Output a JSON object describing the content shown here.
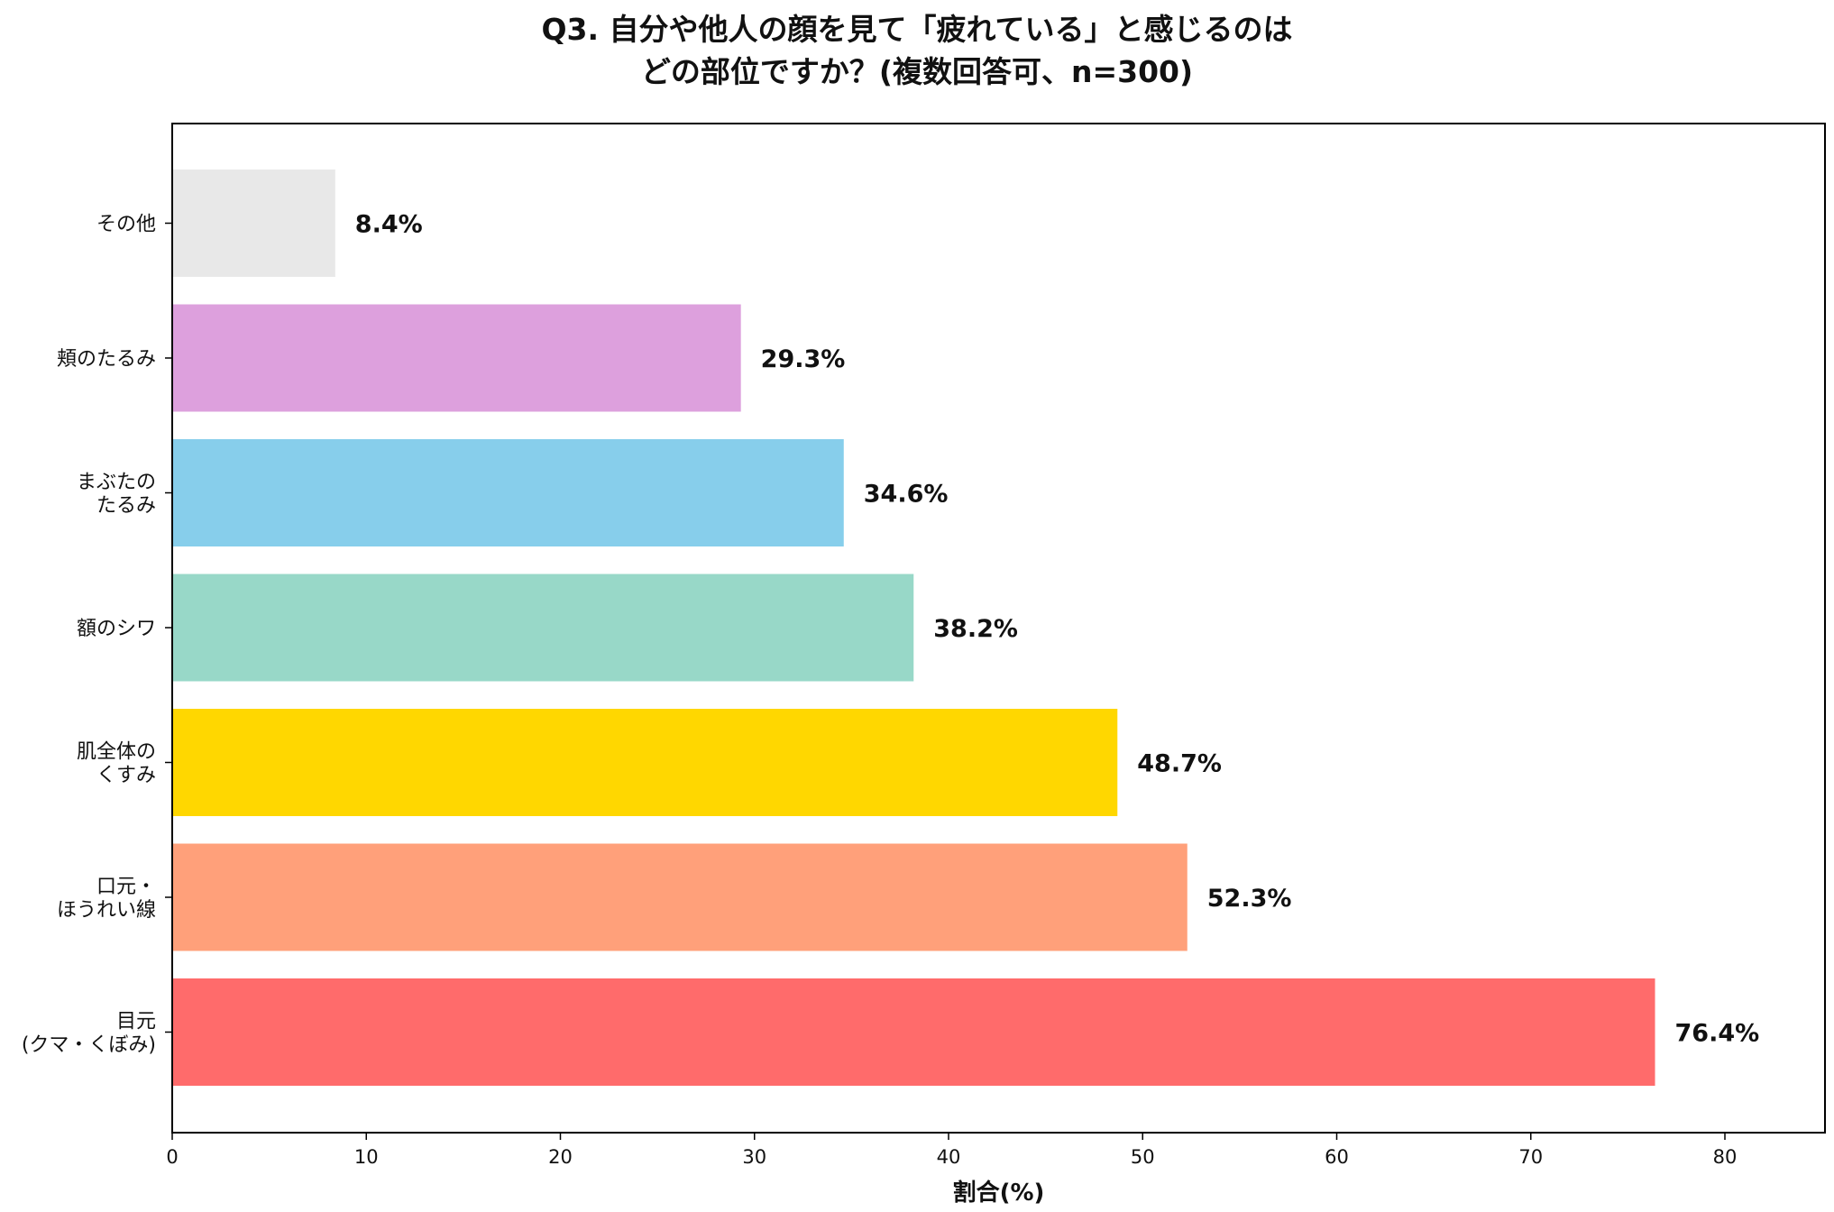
{
  "chart_data": {
    "type": "bar",
    "orientation": "horizontal",
    "title_lines": [
      "Q3. 自分や他人の顔を見て「疲れている」と感じるのは",
      "どの部位ですか？(複数回答可、n=300)"
    ],
    "xlabel": "割合(%)",
    "ylabel": "",
    "xlim": [
      0,
      85
    ],
    "xticks": [
      0,
      10,
      20,
      30,
      40,
      50,
      60,
      70,
      80
    ],
    "grid": false,
    "legend": "none",
    "bars": [
      {
        "label_lines": [
          "その他"
        ],
        "value": 8.4,
        "value_label": "8.4%",
        "color": "#e8e8e8"
      },
      {
        "label_lines": [
          "頬のたるみ"
        ],
        "value": 29.3,
        "value_label": "29.3%",
        "color": "#dda0dd"
      },
      {
        "label_lines": [
          "まぶたの",
          "たるみ"
        ],
        "value": 34.6,
        "value_label": "34.6%",
        "color": "#87ceeb"
      },
      {
        "label_lines": [
          "額のシワ"
        ],
        "value": 38.2,
        "value_label": "38.2%",
        "color": "#98d8c8"
      },
      {
        "label_lines": [
          "肌全体の",
          "くすみ"
        ],
        "value": 48.7,
        "value_label": "48.7%",
        "color": "#ffd700"
      },
      {
        "label_lines": [
          "口元・",
          "ほうれい線"
        ],
        "value": 52.3,
        "value_label": "52.3%",
        "color": "#ffa07a"
      },
      {
        "label_lines": [
          "目元",
          "(クマ・くぼみ)"
        ],
        "value": 76.4,
        "value_label": "76.4%",
        "color": "#ff6b6b"
      }
    ]
  }
}
